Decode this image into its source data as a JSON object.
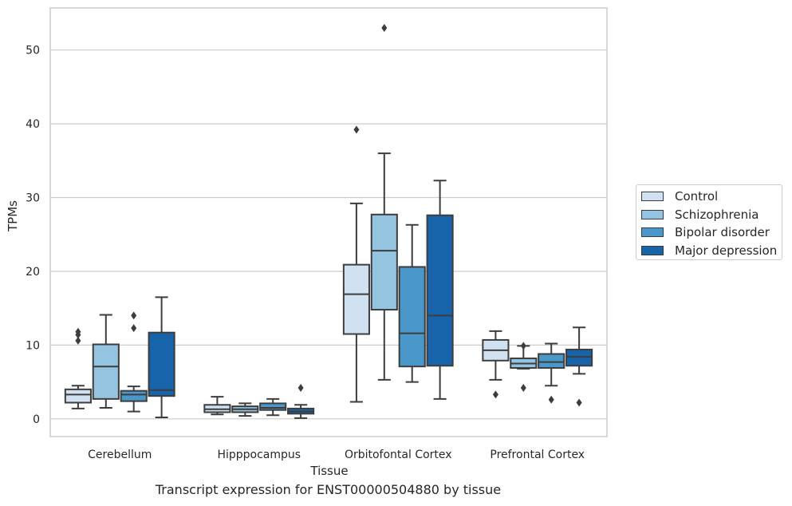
{
  "chart_data": {
    "type": "box",
    "title": "Transcript expression for ENST00000504880 by tissue",
    "xlabel": "Tissue",
    "ylabel": "TPMs",
    "ylim": [
      -2.4,
      55.7
    ],
    "yticks": [
      0,
      10,
      20,
      30,
      40,
      50
    ],
    "grid": "horizontal",
    "legend_position": "right",
    "categories": [
      "Cerebellum",
      "Hipppocampus",
      "Orbitofontal Cortex",
      "Prefrontal Cortex"
    ],
    "series": [
      {
        "name": "Control",
        "color": "#d0e1f2",
        "boxes": [
          {
            "whislo": 1.4,
            "q1": 2.2,
            "med": 3.3,
            "q3": 4.0,
            "whishi": 4.5,
            "fliers": [
              10.6,
              11.4,
              11.8
            ]
          },
          {
            "whislo": 0.6,
            "q1": 0.9,
            "med": 1.3,
            "q3": 1.9,
            "whishi": 3.0,
            "fliers": []
          },
          {
            "whislo": 2.3,
            "q1": 11.5,
            "med": 16.9,
            "q3": 20.9,
            "whishi": 29.2,
            "fliers": [
              39.2
            ]
          },
          {
            "whislo": 5.3,
            "q1": 7.9,
            "med": 9.3,
            "q3": 10.7,
            "whishi": 11.9,
            "fliers": [
              3.3
            ]
          }
        ]
      },
      {
        "name": "Schizophrenia",
        "color": "#94c4df",
        "boxes": [
          {
            "whislo": 1.5,
            "q1": 2.7,
            "med": 7.1,
            "q3": 10.1,
            "whishi": 14.1,
            "fliers": []
          },
          {
            "whislo": 0.4,
            "q1": 0.9,
            "med": 1.3,
            "q3": 1.7,
            "whishi": 2.1,
            "fliers": []
          },
          {
            "whislo": 5.3,
            "q1": 14.8,
            "med": 22.8,
            "q3": 27.7,
            "whishi": 36.0,
            "fliers": [
              53.0
            ]
          },
          {
            "whislo": 6.8,
            "q1": 6.9,
            "med": 7.5,
            "q3": 8.2,
            "whishi": 9.9,
            "fliers": [
              4.2,
              9.9
            ]
          }
        ]
      },
      {
        "name": "Bipolar disorder",
        "color": "#4a98c9",
        "boxes": [
          {
            "whislo": 1.0,
            "q1": 2.4,
            "med": 3.3,
            "q3": 3.8,
            "whishi": 4.4,
            "fliers": [
              12.3,
              14.0
            ]
          },
          {
            "whislo": 0.5,
            "q1": 1.2,
            "med": 1.5,
            "q3": 2.1,
            "whishi": 2.7,
            "fliers": []
          },
          {
            "whislo": 5.0,
            "q1": 7.1,
            "med": 11.6,
            "q3": 20.6,
            "whishi": 26.3,
            "fliers": []
          },
          {
            "whislo": 4.5,
            "q1": 6.9,
            "med": 7.7,
            "q3": 8.8,
            "whishi": 10.2,
            "fliers": [
              2.6
            ]
          }
        ]
      },
      {
        "name": "Major depression",
        "color": "#1764ab",
        "boxes": [
          {
            "whislo": 0.2,
            "q1": 3.1,
            "med": 3.9,
            "q3": 11.7,
            "whishi": 16.5,
            "fliers": []
          },
          {
            "whislo": 0.1,
            "q1": 0.7,
            "med": 1.0,
            "q3": 1.4,
            "whishi": 1.9,
            "fliers": [
              4.2
            ]
          },
          {
            "whislo": 2.7,
            "q1": 7.2,
            "med": 14.0,
            "q3": 27.6,
            "whishi": 32.3,
            "fliers": []
          },
          {
            "whislo": 6.1,
            "q1": 7.2,
            "med": 8.4,
            "q3": 9.4,
            "whishi": 12.4,
            "fliers": [
              2.2
            ]
          }
        ]
      }
    ]
  }
}
